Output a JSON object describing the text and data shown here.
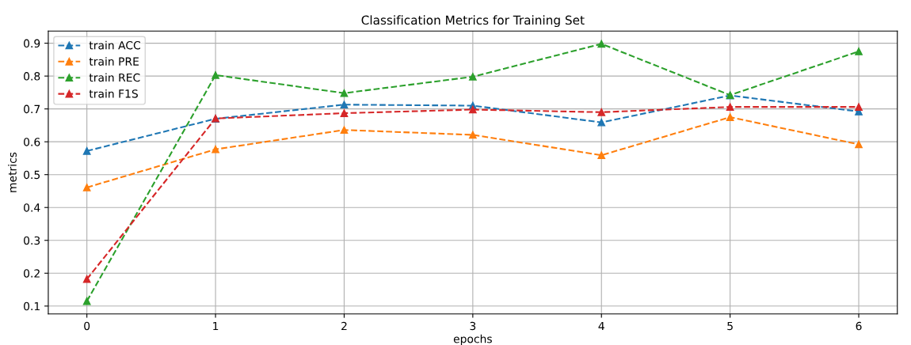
{
  "chart_data": {
    "type": "line",
    "title": "Classification Metrics for Training Set",
    "xlabel": "epochs",
    "ylabel": "metrics",
    "x": [
      0,
      1,
      2,
      3,
      4,
      5,
      6
    ],
    "series": [
      {
        "name": "train ACC",
        "color": "#1f77b4",
        "values": [
          0.572,
          0.67,
          0.713,
          0.71,
          0.659,
          0.741,
          0.692
        ]
      },
      {
        "name": "train PRE",
        "color": "#ff7f0e",
        "values": [
          0.461,
          0.577,
          0.636,
          0.621,
          0.559,
          0.675,
          0.592
        ]
      },
      {
        "name": "train REC",
        "color": "#2ca02c",
        "values": [
          0.115,
          0.803,
          0.748,
          0.798,
          0.898,
          0.742,
          0.875
        ]
      },
      {
        "name": "train F1S",
        "color": "#d62728",
        "values": [
          0.182,
          0.671,
          0.687,
          0.698,
          0.69,
          0.706,
          0.706
        ]
      }
    ],
    "xlim": [
      -0.3,
      6.3
    ],
    "ylim": [
      0.076,
      0.937
    ],
    "xticks": [
      0,
      1,
      2,
      3,
      4,
      5,
      6
    ],
    "yticks": [
      0.1,
      0.2,
      0.3,
      0.4,
      0.5,
      0.6,
      0.7,
      0.8,
      0.9
    ],
    "grid": true,
    "legend": "top left",
    "marker": "triangle",
    "line_style": "dashed"
  }
}
